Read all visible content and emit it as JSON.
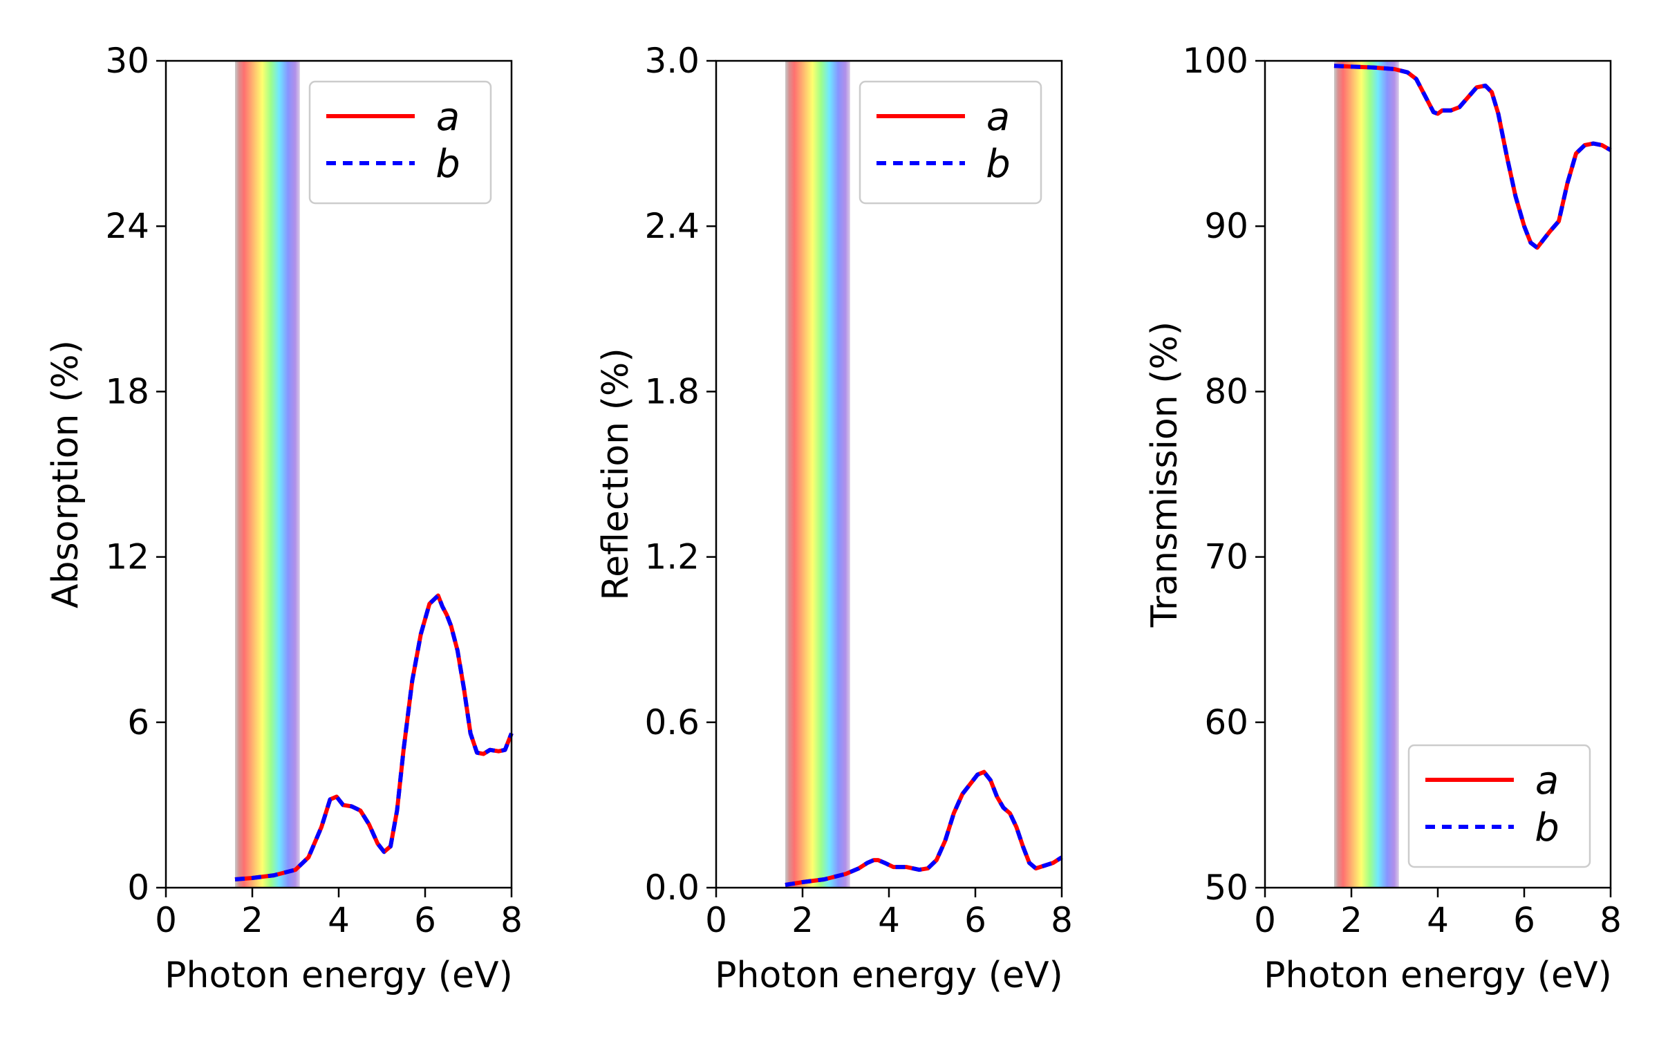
{
  "chart_data": [
    {
      "type": "line",
      "xlabel": "Photon energy (eV)",
      "ylabel": "Absorption (%)",
      "xlim": [
        0,
        8
      ],
      "ylim": [
        0,
        30
      ],
      "xticks": [
        "0",
        "2",
        "4",
        "6",
        "8"
      ],
      "yticks": [
        "0",
        "6",
        "12",
        "18",
        "24",
        "30"
      ],
      "legend_placement": "upper-right",
      "visible_spectrum_band_ev": [
        1.6,
        3.1
      ],
      "series": [
        {
          "name": "a",
          "color": "#ff0000",
          "style": "solid",
          "x": [
            1.6,
            2.0,
            2.5,
            3.0,
            3.3,
            3.6,
            3.8,
            3.95,
            4.1,
            4.3,
            4.5,
            4.7,
            4.9,
            5.05,
            5.2,
            5.35,
            5.5,
            5.7,
            5.9,
            6.1,
            6.3,
            6.4,
            6.5,
            6.6,
            6.75,
            6.9,
            7.05,
            7.2,
            7.35,
            7.5,
            7.7,
            7.85,
            8.0
          ],
          "y": [
            0.3,
            0.35,
            0.45,
            0.65,
            1.1,
            2.2,
            3.2,
            3.3,
            3.0,
            2.95,
            2.8,
            2.3,
            1.6,
            1.3,
            1.5,
            2.8,
            5.0,
            7.5,
            9.2,
            10.3,
            10.6,
            10.2,
            9.9,
            9.5,
            8.6,
            7.2,
            5.6,
            4.9,
            4.85,
            5.0,
            4.95,
            5.0,
            5.6
          ]
        },
        {
          "name": "b",
          "color": "#0000ff",
          "style": "dashed",
          "x": [
            1.6,
            2.0,
            2.5,
            3.0,
            3.3,
            3.6,
            3.8,
            3.95,
            4.1,
            4.3,
            4.5,
            4.7,
            4.9,
            5.05,
            5.2,
            5.35,
            5.5,
            5.7,
            5.9,
            6.1,
            6.3,
            6.4,
            6.5,
            6.6,
            6.75,
            6.9,
            7.05,
            7.2,
            7.35,
            7.5,
            7.7,
            7.85,
            8.0
          ],
          "y": [
            0.3,
            0.35,
            0.45,
            0.65,
            1.1,
            2.2,
            3.2,
            3.3,
            3.0,
            2.95,
            2.8,
            2.3,
            1.6,
            1.3,
            1.5,
            2.8,
            5.0,
            7.5,
            9.2,
            10.3,
            10.6,
            10.2,
            9.9,
            9.5,
            8.6,
            7.2,
            5.6,
            4.9,
            4.85,
            5.0,
            4.95,
            5.0,
            5.6
          ]
        }
      ]
    },
    {
      "type": "line",
      "xlabel": "Photon energy (eV)",
      "ylabel": "Reflection (%)",
      "xlim": [
        0,
        8
      ],
      "ylim": [
        0,
        3.0
      ],
      "xticks": [
        "0",
        "2",
        "4",
        "6",
        "8"
      ],
      "yticks": [
        "0.0",
        "0.6",
        "1.2",
        "1.8",
        "2.4",
        "3.0"
      ],
      "legend_placement": "upper-right",
      "visible_spectrum_band_ev": [
        1.6,
        3.1
      ],
      "series": [
        {
          "name": "a",
          "color": "#ff0000",
          "style": "solid",
          "x": [
            1.6,
            2.0,
            2.5,
            3.0,
            3.3,
            3.5,
            3.65,
            3.75,
            3.9,
            4.1,
            4.4,
            4.7,
            4.9,
            5.1,
            5.3,
            5.5,
            5.7,
            5.9,
            6.05,
            6.2,
            6.35,
            6.5,
            6.65,
            6.8,
            6.95,
            7.1,
            7.25,
            7.4,
            7.6,
            7.8,
            8.0
          ],
          "y": [
            0.01,
            0.02,
            0.03,
            0.05,
            0.07,
            0.09,
            0.1,
            0.1,
            0.09,
            0.075,
            0.075,
            0.065,
            0.07,
            0.1,
            0.17,
            0.27,
            0.34,
            0.38,
            0.41,
            0.42,
            0.39,
            0.33,
            0.29,
            0.27,
            0.22,
            0.15,
            0.09,
            0.07,
            0.08,
            0.09,
            0.11
          ]
        },
        {
          "name": "b",
          "color": "#0000ff",
          "style": "dashed",
          "x": [
            1.6,
            2.0,
            2.5,
            3.0,
            3.3,
            3.5,
            3.65,
            3.75,
            3.9,
            4.1,
            4.4,
            4.7,
            4.9,
            5.1,
            5.3,
            5.5,
            5.7,
            5.9,
            6.05,
            6.2,
            6.35,
            6.5,
            6.65,
            6.8,
            6.95,
            7.1,
            7.25,
            7.4,
            7.6,
            7.8,
            8.0
          ],
          "y": [
            0.01,
            0.02,
            0.03,
            0.05,
            0.07,
            0.09,
            0.1,
            0.1,
            0.09,
            0.075,
            0.075,
            0.065,
            0.07,
            0.1,
            0.17,
            0.27,
            0.34,
            0.38,
            0.41,
            0.42,
            0.39,
            0.33,
            0.29,
            0.27,
            0.22,
            0.15,
            0.09,
            0.07,
            0.08,
            0.09,
            0.11
          ]
        }
      ]
    },
    {
      "type": "line",
      "xlabel": "Photon energy (eV)",
      "ylabel": "Transmission (%)",
      "xlim": [
        0,
        8
      ],
      "ylim": [
        50,
        100
      ],
      "xticks": [
        "0",
        "2",
        "4",
        "6",
        "8"
      ],
      "yticks": [
        "50",
        "60",
        "70",
        "80",
        "90",
        "100"
      ],
      "legend_placement": "lower-right",
      "visible_spectrum_band_ev": [
        1.6,
        3.1
      ],
      "series": [
        {
          "name": "a",
          "color": "#ff0000",
          "style": "solid",
          "x": [
            1.6,
            2.0,
            2.5,
            3.0,
            3.3,
            3.5,
            3.7,
            3.9,
            4.0,
            4.1,
            4.3,
            4.5,
            4.7,
            4.9,
            5.1,
            5.25,
            5.4,
            5.6,
            5.8,
            6.0,
            6.15,
            6.3,
            6.45,
            6.6,
            6.8,
            7.0,
            7.2,
            7.4,
            7.6,
            7.8,
            8.0
          ],
          "y": [
            99.7,
            99.65,
            99.6,
            99.5,
            99.3,
            98.9,
            97.9,
            96.9,
            96.8,
            97.0,
            97.0,
            97.2,
            97.8,
            98.4,
            98.5,
            98.1,
            96.8,
            94.2,
            91.8,
            90.0,
            89.0,
            88.7,
            89.2,
            89.7,
            90.3,
            92.6,
            94.4,
            94.9,
            95.0,
            94.9,
            94.6
          ]
        },
        {
          "name": "b",
          "color": "#0000ff",
          "style": "dashed",
          "x": [
            1.6,
            2.0,
            2.5,
            3.0,
            3.3,
            3.5,
            3.7,
            3.9,
            4.0,
            4.1,
            4.3,
            4.5,
            4.7,
            4.9,
            5.1,
            5.25,
            5.4,
            5.6,
            5.8,
            6.0,
            6.15,
            6.3,
            6.45,
            6.6,
            6.8,
            7.0,
            7.2,
            7.4,
            7.6,
            7.8,
            8.0
          ],
          "y": [
            99.7,
            99.65,
            99.6,
            99.5,
            99.3,
            98.9,
            97.9,
            96.9,
            96.8,
            97.0,
            97.0,
            97.2,
            97.8,
            98.4,
            98.5,
            98.1,
            96.8,
            94.2,
            91.8,
            90.0,
            89.0,
            88.7,
            89.2,
            89.7,
            90.3,
            92.6,
            94.4,
            94.9,
            95.0,
            94.9,
            94.6
          ]
        }
      ]
    }
  ]
}
